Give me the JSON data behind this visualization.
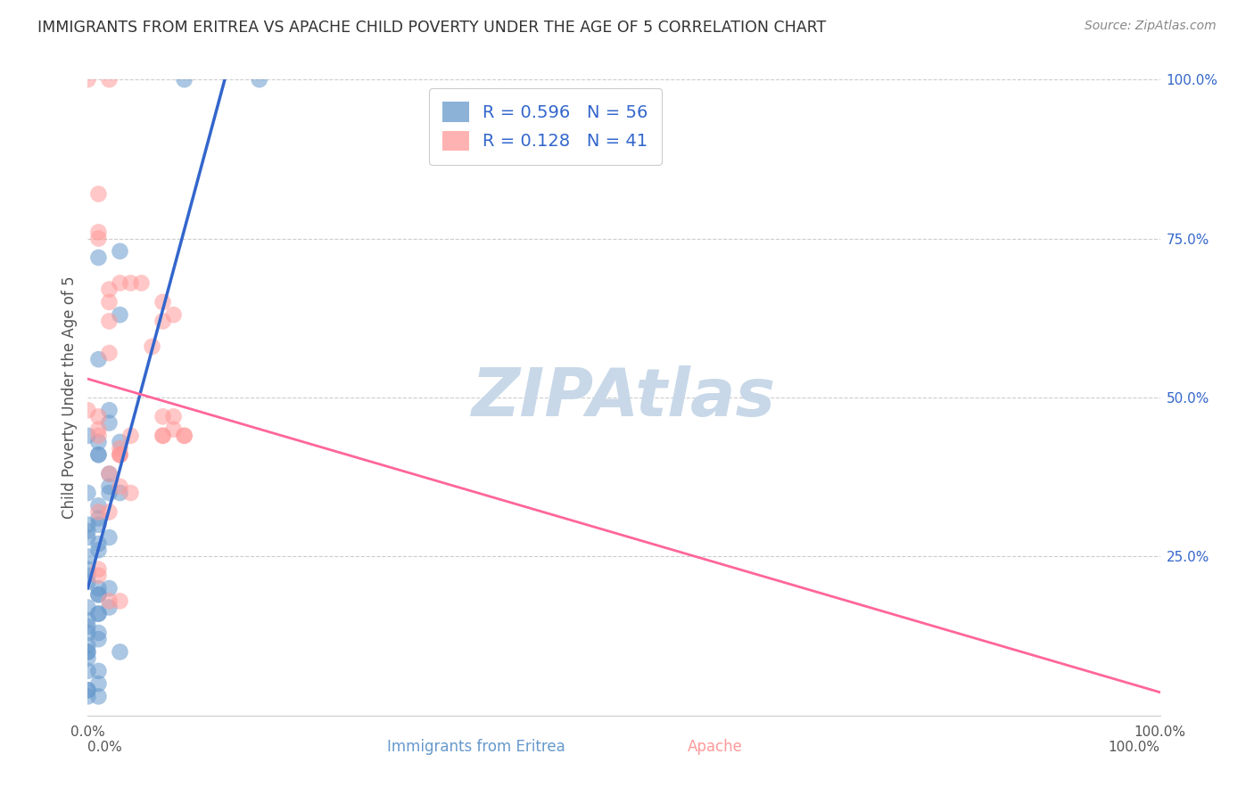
{
  "title": "IMMIGRANTS FROM ERITREA VS APACHE CHILD POVERTY UNDER THE AGE OF 5 CORRELATION CHART",
  "source": "Source: ZipAtlas.com",
  "ylabel": "Child Poverty Under the Age of 5",
  "legend_r1": "R = 0.596",
  "legend_n1": "N = 56",
  "legend_r2": "R = 0.128",
  "legend_n2": "N = 41",
  "blue_color": "#6699CC",
  "pink_color": "#FF9999",
  "trendline_blue": "#3366CC",
  "trendline_pink": "#FF6699",
  "legend_text_color": "#3366CC",
  "title_color": "#333333",
  "watermark_color": "#C8D8E8",
  "background_color": "#FFFFFF",
  "blue_points_x": [
    0.002,
    0.001,
    0.003,
    0.001,
    0.0,
    0.001,
    0.001,
    0.001,
    0.0,
    0.002,
    0.003,
    0.002,
    0.001,
    0.003,
    0.002,
    0.001,
    0.0,
    0.0,
    0.001,
    0.0,
    0.001,
    0.002,
    0.001,
    0.0,
    0.0,
    0.0,
    0.0,
    0.001,
    0.002,
    0.001,
    0.003,
    0.001,
    0.002,
    0.0,
    0.001,
    0.001,
    0.0,
    0.0,
    0.0,
    0.001,
    0.001,
    0.0,
    0.0,
    0.0,
    0.0,
    0.001,
    0.0,
    0.001,
    0.0,
    0.0,
    0.001,
    0.0,
    0.003,
    0.002,
    0.016,
    0.009
  ],
  "blue_points_y": [
    0.46,
    0.72,
    0.63,
    0.56,
    0.44,
    0.43,
    0.41,
    0.41,
    0.35,
    0.38,
    0.43,
    0.35,
    0.33,
    0.35,
    0.36,
    0.3,
    0.3,
    0.29,
    0.31,
    0.28,
    0.26,
    0.28,
    0.27,
    0.25,
    0.23,
    0.22,
    0.21,
    0.2,
    0.2,
    0.19,
    0.73,
    0.19,
    0.17,
    0.17,
    0.16,
    0.16,
    0.15,
    0.14,
    0.13,
    0.13,
    0.12,
    0.11,
    0.1,
    0.1,
    0.09,
    0.07,
    0.07,
    0.05,
    0.04,
    0.04,
    0.03,
    0.03,
    0.1,
    0.48,
    1.0,
    1.0
  ],
  "pink_points_x": [
    0.001,
    0.002,
    0.007,
    0.007,
    0.003,
    0.003,
    0.002,
    0.004,
    0.001,
    0.0,
    0.002,
    0.003,
    0.001,
    0.004,
    0.003,
    0.002,
    0.003,
    0.001,
    0.002,
    0.003,
    0.002,
    0.004,
    0.002,
    0.003,
    0.001,
    0.001,
    0.005,
    0.007,
    0.007,
    0.006,
    0.008,
    0.008,
    0.009,
    0.009,
    0.007,
    0.008,
    0.0,
    0.002,
    0.001,
    0.001,
    0.001
  ],
  "pink_points_y": [
    0.47,
    0.67,
    0.44,
    0.44,
    0.41,
    0.41,
    0.38,
    0.35,
    0.32,
    0.48,
    0.32,
    0.42,
    0.22,
    0.44,
    0.41,
    0.62,
    0.36,
    0.23,
    0.18,
    0.18,
    0.57,
    0.68,
    0.65,
    0.68,
    0.45,
    0.44,
    0.68,
    0.65,
    0.62,
    0.58,
    0.63,
    0.47,
    0.44,
    0.44,
    0.47,
    0.45,
    1.0,
    1.0,
    0.75,
    0.82,
    0.76
  ],
  "xlim": [
    0.0,
    0.1
  ],
  "ylim": [
    0.0,
    1.0
  ],
  "x_ticks": [
    0.0,
    0.1
  ],
  "y_ticks": [
    0.25,
    0.5,
    0.75,
    1.0
  ],
  "right_y_labels": [
    "25.0%",
    "50.0%",
    "75.0%",
    "100.0%"
  ]
}
